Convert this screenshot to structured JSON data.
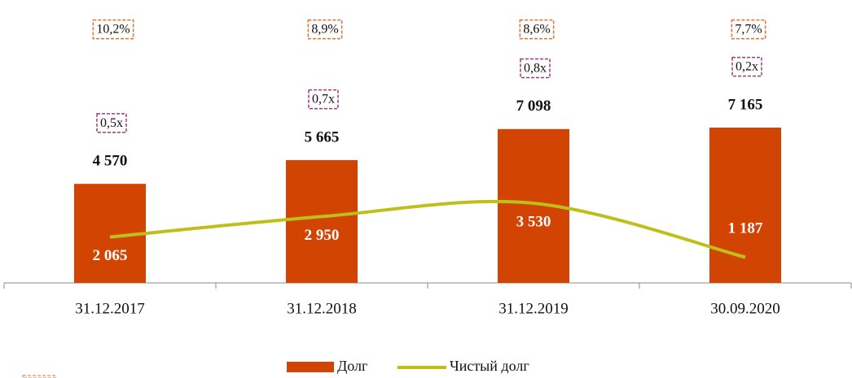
{
  "chart_data": {
    "type": "bar",
    "categories": [
      "31.12.2017",
      "31.12.2018",
      "31.12.2019",
      "30.09.2020"
    ],
    "series": [
      {
        "name": "Долг",
        "color": "#d24402",
        "values": [
          4570,
          5665,
          7098,
          7165
        ],
        "value_labels": [
          "4 570",
          "5 665",
          "7 098",
          "7 165"
        ]
      },
      {
        "name": "Чистый долг",
        "color": "#bfbf1a",
        "type": "line",
        "axis": "y2",
        "values": [
          2065,
          2950,
          3530,
          1187
        ],
        "value_labels": [
          "2 065",
          "2 950",
          "3 530",
          "1 187"
        ]
      }
    ],
    "annotations": {
      "percent": [
        "10,2%",
        "8,9%",
        "8,6%",
        "7,7%"
      ],
      "multiple": [
        "0,5x",
        "0,7x",
        "0,8x",
        "0,2x"
      ]
    },
    "legend": "bottom"
  }
}
